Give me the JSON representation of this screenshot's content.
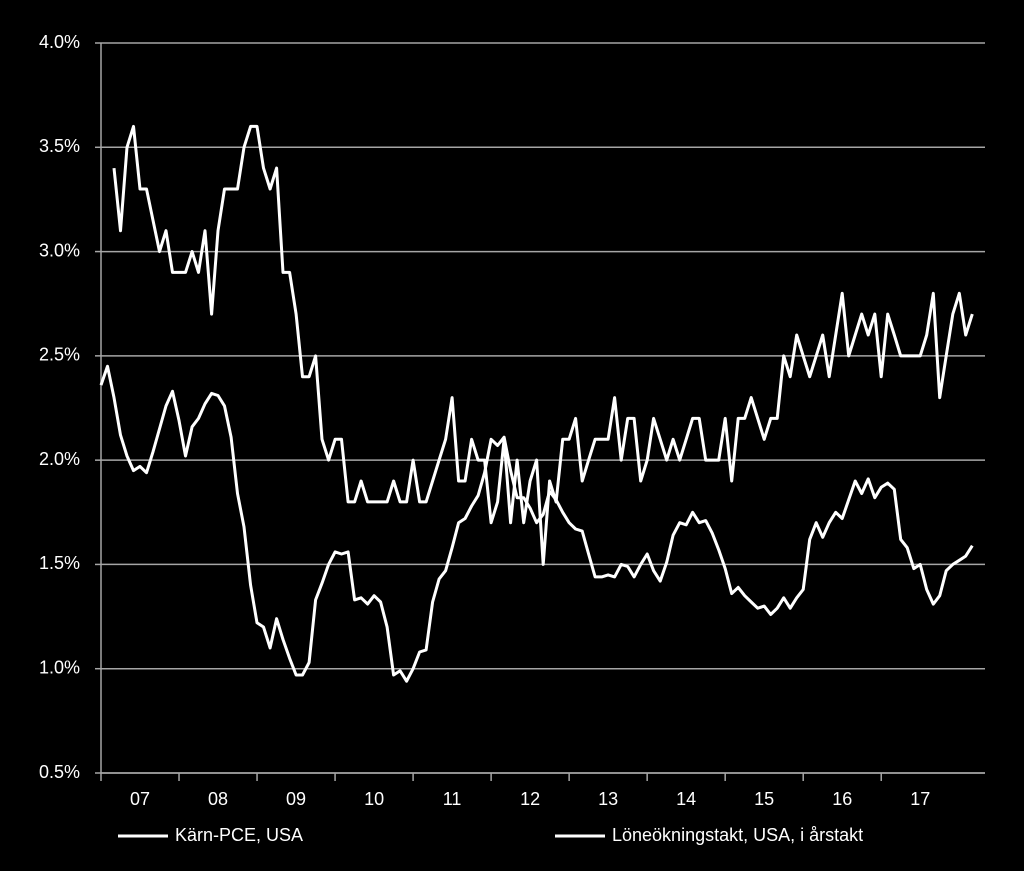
{
  "chart_data": {
    "type": "line",
    "x": [
      2007,
      2007.083,
      2007.167,
      2007.25,
      2007.333,
      2007.417,
      2007.5,
      2007.583,
      2007.667,
      2007.75,
      2007.833,
      2007.917,
      2008,
      2008.083,
      2008.167,
      2008.25,
      2008.333,
      2008.417,
      2008.5,
      2008.583,
      2008.667,
      2008.75,
      2008.833,
      2008.917,
      2009,
      2009.083,
      2009.167,
      2009.25,
      2009.333,
      2009.417,
      2009.5,
      2009.583,
      2009.667,
      2009.75,
      2009.833,
      2009.917,
      2010,
      2010.083,
      2010.167,
      2010.25,
      2010.333,
      2010.417,
      2010.5,
      2010.583,
      2010.667,
      2010.75,
      2010.833,
      2010.917,
      2011,
      2011.083,
      2011.167,
      2011.25,
      2011.333,
      2011.417,
      2011.5,
      2011.583,
      2011.667,
      2011.75,
      2011.833,
      2011.917,
      2012,
      2012.083,
      2012.167,
      2012.25,
      2012.333,
      2012.417,
      2012.5,
      2012.583,
      2012.667,
      2012.75,
      2012.833,
      2012.917,
      2013,
      2013.083,
      2013.167,
      2013.25,
      2013.333,
      2013.417,
      2013.5,
      2013.583,
      2013.667,
      2013.75,
      2013.833,
      2013.917,
      2014,
      2014.083,
      2014.167,
      2014.25,
      2014.333,
      2014.417,
      2014.5,
      2014.583,
      2014.667,
      2014.75,
      2014.833,
      2014.917,
      2015,
      2015.083,
      2015.167,
      2015.25,
      2015.333,
      2015.417,
      2015.5,
      2015.583,
      2015.667,
      2015.75,
      2015.833,
      2015.917,
      2016,
      2016.083,
      2016.167,
      2016.25,
      2016.333,
      2016.417,
      2016.5,
      2016.583,
      2016.667,
      2016.75,
      2016.833,
      2016.917,
      2017,
      2017.083,
      2017.167,
      2017.25,
      2017.333,
      2017.417,
      2017.5,
      2017.583,
      2017.667,
      2017.75,
      2017.833,
      2017.917,
      2018,
      2018.083,
      2018.167
    ],
    "series": [
      {
        "name": "Kärn-PCE, USA",
        "color": "#ffffff",
        "values": [
          2.36,
          2.45,
          2.3,
          2.12,
          2.02,
          1.95,
          1.97,
          1.94,
          2.04,
          2.15,
          2.26,
          2.33,
          2.19,
          2.02,
          2.16,
          2.2,
          2.27,
          2.32,
          2.31,
          2.26,
          2.11,
          1.84,
          1.68,
          1.4,
          1.22,
          1.2,
          1.1,
          1.24,
          1.14,
          1.05,
          0.97,
          0.97,
          1.03,
          1.33,
          1.41,
          1.5,
          1.56,
          1.55,
          1.56,
          1.33,
          1.34,
          1.31,
          1.35,
          1.32,
          1.2,
          0.97,
          0.99,
          0.94,
          1.0,
          1.08,
          1.09,
          1.32,
          1.43,
          1.47,
          1.58,
          1.7,
          1.72,
          1.78,
          1.83,
          1.94,
          2.1,
          2.07,
          2.11,
          1.95,
          1.82,
          1.82,
          1.77,
          1.7,
          1.74,
          1.85,
          1.81,
          1.75,
          1.7,
          1.67,
          1.66,
          1.55,
          1.44,
          1.44,
          1.45,
          1.44,
          1.5,
          1.49,
          1.44,
          1.5,
          1.55,
          1.47,
          1.42,
          1.51,
          1.64,
          1.7,
          1.69,
          1.75,
          1.7,
          1.71,
          1.65,
          1.57,
          1.48,
          1.36,
          1.39,
          1.35,
          1.32,
          1.29,
          1.3,
          1.26,
          1.29,
          1.34,
          1.29,
          1.34,
          1.38,
          1.62,
          1.7,
          1.63,
          1.7,
          1.75,
          1.72,
          1.81,
          1.9,
          1.84,
          1.91,
          1.82,
          1.87,
          1.89,
          1.86,
          1.62,
          1.58,
          1.48,
          1.5,
          1.38,
          1.31,
          1.35,
          1.47,
          1.5,
          1.52,
          1.54,
          1.59
        ]
      },
      {
        "name": "Löneökningstakt, USA, i årstakt",
        "color": "#ffffff",
        "values": [
          null,
          null,
          3.4,
          3.1,
          3.5,
          3.6,
          3.3,
          3.3,
          3.15,
          3.0,
          3.1,
          2.9,
          2.9,
          2.9,
          3.0,
          2.9,
          3.1,
          2.7,
          3.1,
          3.3,
          3.3,
          3.3,
          3.5,
          3.6,
          3.6,
          3.4,
          3.3,
          3.4,
          2.9,
          2.9,
          2.7,
          2.4,
          2.4,
          2.5,
          2.1,
          2.0,
          2.1,
          2.1,
          1.8,
          1.8,
          1.9,
          1.8,
          1.8,
          1.8,
          1.8,
          1.9,
          1.8,
          1.8,
          2.0,
          1.8,
          1.8,
          1.9,
          2.0,
          2.1,
          2.3,
          1.9,
          1.9,
          2.1,
          2.0,
          2.0,
          1.7,
          1.8,
          2.1,
          1.7,
          2.0,
          1.7,
          1.9,
          2.0,
          1.5,
          1.9,
          1.8,
          2.1,
          2.1,
          2.2,
          1.9,
          2.0,
          2.1,
          2.1,
          2.1,
          2.3,
          2.0,
          2.2,
          2.2,
          1.9,
          2.0,
          2.2,
          2.1,
          2.0,
          2.1,
          2.0,
          2.1,
          2.2,
          2.2,
          2.0,
          2.0,
          2.0,
          2.2,
          1.9,
          2.2,
          2.2,
          2.3,
          2.2,
          2.1,
          2.2,
          2.2,
          2.5,
          2.4,
          2.6,
          2.5,
          2.4,
          2.5,
          2.6,
          2.4,
          2.6,
          2.8,
          2.5,
          2.6,
          2.7,
          2.6,
          2.7,
          2.4,
          2.7,
          2.6,
          2.5,
          2.5,
          2.5,
          2.5,
          2.6,
          2.8,
          2.3,
          2.5,
          2.7,
          2.8,
          2.6,
          2.7
        ]
      }
    ],
    "xlim": [
      2007,
      2018.33
    ],
    "xticks": [
      {
        "value": 2007.5,
        "label": "07"
      },
      {
        "value": 2008.5,
        "label": "08"
      },
      {
        "value": 2009.5,
        "label": "09"
      },
      {
        "value": 2010.5,
        "label": "10"
      },
      {
        "value": 2011.5,
        "label": "11"
      },
      {
        "value": 2012.5,
        "label": "12"
      },
      {
        "value": 2013.5,
        "label": "13"
      },
      {
        "value": 2014.5,
        "label": "14"
      },
      {
        "value": 2015.5,
        "label": "15"
      },
      {
        "value": 2016.5,
        "label": "16"
      },
      {
        "value": 2017.5,
        "label": "17"
      }
    ],
    "ylim": [
      0.5,
      4.0
    ],
    "yticks": [
      {
        "value": 0.5,
        "label": "0.5%"
      },
      {
        "value": 1.0,
        "label": "1.0%"
      },
      {
        "value": 1.5,
        "label": "1.5%"
      },
      {
        "value": 2.0,
        "label": "2.0%"
      },
      {
        "value": 2.5,
        "label": "2.5%"
      },
      {
        "value": 3.0,
        "label": "3.0%"
      },
      {
        "value": 3.5,
        "label": "3.5%"
      },
      {
        "value": 4.0,
        "label": "4.0%"
      }
    ],
    "grid": true
  }
}
